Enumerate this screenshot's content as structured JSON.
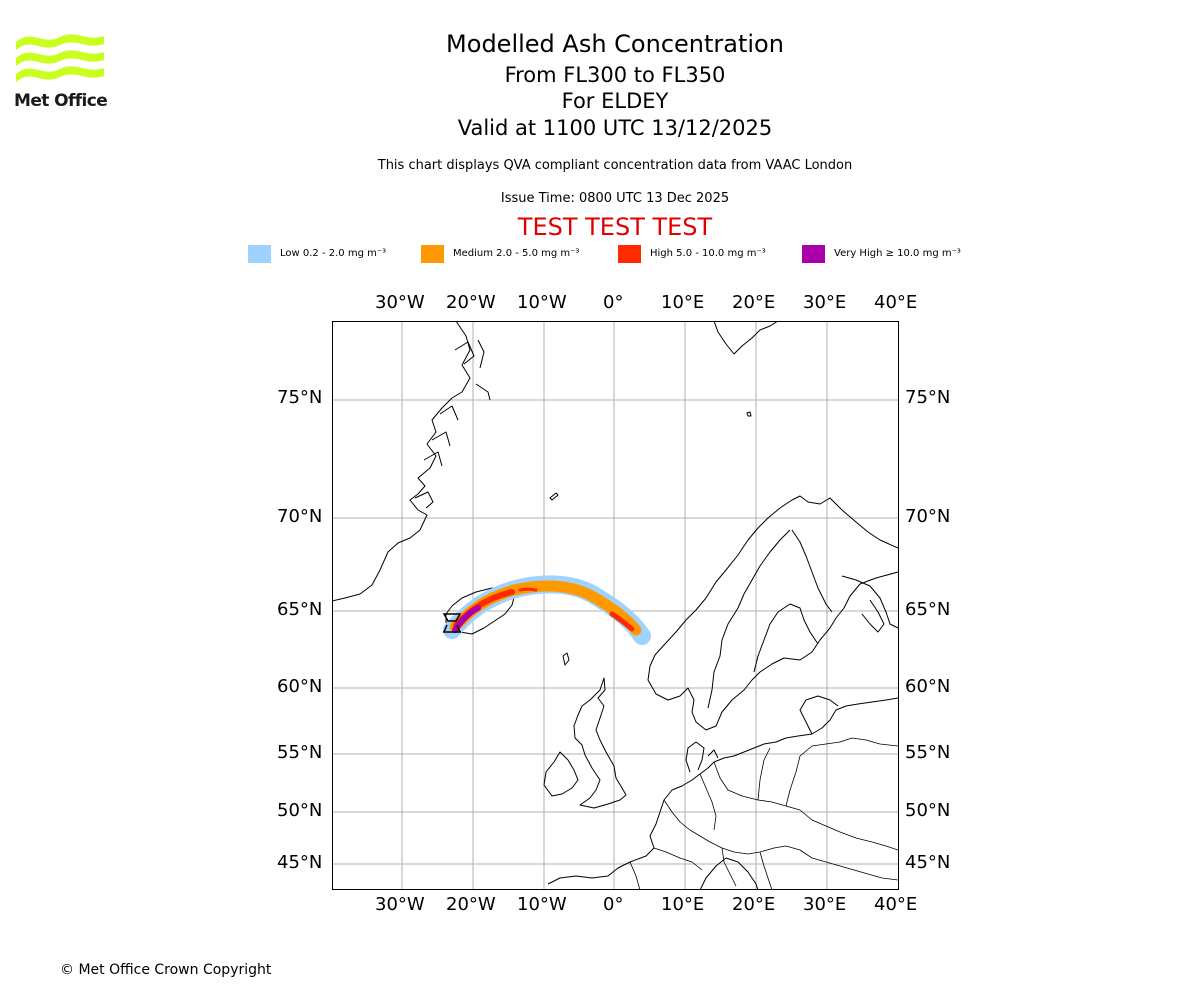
{
  "logo": {
    "text": "Met Office",
    "color": "#c8ff1e"
  },
  "title": {
    "main": "Modelled Ash Concentration",
    "levels": "From FL300 to FL350",
    "region": "For ELDEY",
    "valid": "Valid at 1100 UTC 13/12/2025",
    "description": "This chart displays QVA compliant concentration data from VAAC London",
    "issue": "Issue Time: 0800 UTC 13 Dec 2025",
    "test": "TEST TEST TEST"
  },
  "legend": [
    {
      "label": "Low 0.2 - 2.0 mg m⁻³",
      "color": "#a0d2ff"
    },
    {
      "label": "Medium 2.0 - 5.0 mg m⁻³",
      "color": "#ff9900"
    },
    {
      "label": "High 5.0 - 10.0 mg m⁻³",
      "color": "#ff2a00"
    },
    {
      "label": "Very High ≥ 10.0 mg m⁻³",
      "color": "#aa00aa"
    }
  ],
  "map": {
    "lon_labels": [
      "30°W",
      "20°W",
      "10°W",
      "0°",
      "10°E",
      "20°E",
      "30°E",
      "40°E"
    ],
    "lat_labels": [
      "75°N",
      "70°N",
      "65°N",
      "60°N",
      "55°N",
      "50°N",
      "45°N"
    ],
    "lon_range": [
      -40,
      40
    ],
    "lat_range": [
      43,
      79
    ],
    "grid": true
  },
  "ash": {
    "layers": [
      {
        "level": "Low",
        "color": "#a0d2ff"
      },
      {
        "level": "Medium",
        "color": "#ff9900"
      },
      {
        "level": "High",
        "color": "#ff2a00"
      },
      {
        "level": "Very High",
        "color": "#aa00aa"
      }
    ]
  },
  "copyright": "© Met Office Crown Copyright"
}
